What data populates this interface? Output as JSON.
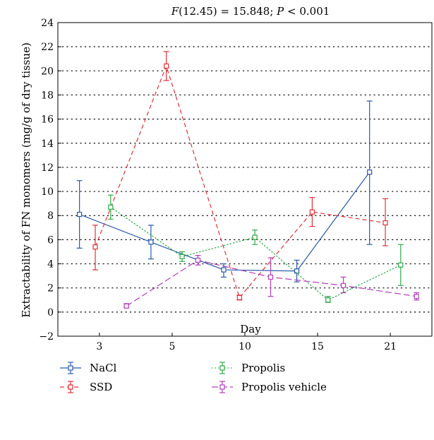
{
  "chart_data": {
    "type": "line",
    "title_parts": [
      "F",
      "(12.45) = 15.848; ",
      "P",
      " < 0.001"
    ],
    "xlabel": "Day",
    "ylabel": "Extractability of FN monomers (mg/g of dry tissue)",
    "categories": [
      "3",
      "5",
      "10",
      "15",
      "21"
    ],
    "ylim": [
      -2,
      24
    ],
    "y_ticks": [
      -2,
      0,
      2,
      4,
      6,
      8,
      10,
      12,
      14,
      16,
      18,
      20,
      22,
      24
    ],
    "grid": "dotted-horizontal",
    "legend_position": "bottom",
    "series": [
      {
        "name": "NaCl",
        "color": "#2a5aa8",
        "dash": "solid",
        "points": [
          {
            "x": 2.52,
            "y": 8.1,
            "lo": 5.3,
            "hi": 10.9
          },
          {
            "x": 4.24,
            "y": 5.8,
            "lo": 4.4,
            "hi": 7.2
          },
          {
            "x": 5.99,
            "y": 3.5,
            "lo": 2.9,
            "hi": 4.0
          },
          {
            "x": 7.75,
            "y": 3.4,
            "lo": 2.5,
            "hi": 4.3
          },
          {
            "x": 9.5,
            "y": 11.6,
            "lo": 5.6,
            "hi": 17.5
          }
        ]
      },
      {
        "name": "SSD",
        "color": "#e0303a",
        "dash": "dashed",
        "points": [
          {
            "x": 2.9,
            "y": 5.4,
            "lo": 3.5,
            "hi": 7.2
          },
          {
            "x": 4.61,
            "y": 20.4,
            "lo": 19.2,
            "hi": 21.6
          },
          {
            "x": 6.37,
            "y": 1.2,
            "lo": 1.0,
            "hi": 1.4
          },
          {
            "x": 8.12,
            "y": 8.3,
            "lo": 7.1,
            "hi": 9.5
          },
          {
            "x": 9.88,
            "y": 7.4,
            "lo": 5.5,
            "hi": 9.4
          }
        ]
      },
      {
        "name": "Propolis",
        "color": "#2ea84a",
        "dash": "dotted",
        "points": [
          {
            "x": 3.27,
            "y": 8.7,
            "lo": 7.7,
            "hi": 9.7
          },
          {
            "x": 4.99,
            "y": 4.6,
            "lo": 4.2,
            "hi": 5.0
          },
          {
            "x": 6.74,
            "y": 6.2,
            "lo": 5.6,
            "hi": 6.8
          },
          {
            "x": 8.5,
            "y": 1.0,
            "lo": 0.8,
            "hi": 1.3
          },
          {
            "x": 10.25,
            "y": 3.9,
            "lo": 2.2,
            "hi": 5.6
          }
        ]
      },
      {
        "name": "Propolis vehicle",
        "color": "#b040b8",
        "dash": "longdash",
        "points": [
          {
            "x": 3.65,
            "y": 0.5,
            "lo": 0.4,
            "hi": 0.7
          },
          {
            "x": 5.37,
            "y": 4.3,
            "lo": 3.9,
            "hi": 4.7
          },
          {
            "x": 7.12,
            "y": 2.9,
            "lo": 1.3,
            "hi": 4.5
          },
          {
            "x": 8.87,
            "y": 2.2,
            "lo": 1.6,
            "hi": 2.9
          },
          {
            "x": 10.63,
            "y": 1.3,
            "lo": 1.0,
            "hi": 1.6
          }
        ]
      }
    ]
  }
}
